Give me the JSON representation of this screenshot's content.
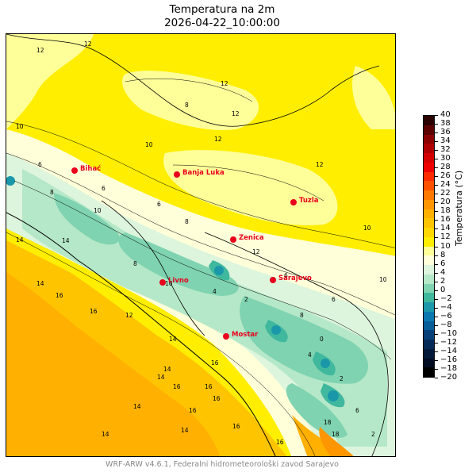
{
  "title": {
    "line1": "Temperatura na 2m",
    "line2": "2026-04-22_10:00:00"
  },
  "colorbar": {
    "label": "Temperatura (°C)",
    "ticks": [
      "40",
      "38",
      "36",
      "34",
      "32",
      "30",
      "28",
      "26",
      "24",
      "22",
      "20",
      "18",
      "16",
      "14",
      "12",
      "10",
      "8",
      "6",
      "4",
      "2",
      "0",
      "−2",
      "−4",
      "−6",
      "−8",
      "−10",
      "−12",
      "−14",
      "−16",
      "−18",
      "−20"
    ],
    "colors": [
      "#2a0000",
      "#5c0000",
      "#8b0000",
      "#b00000",
      "#d40000",
      "#ee0000",
      "#ff2a00",
      "#ff5000",
      "#ff7800",
      "#ff9600",
      "#ffb000",
      "#ffc400",
      "#ffd800",
      "#ffee00",
      "#ffff99",
      "#ffffd9",
      "#ddf5dd",
      "#b5e8c8",
      "#7fd3b0",
      "#40b89e",
      "#1a98aa",
      "#0a78b0",
      "#085e98",
      "#073f78",
      "#062a58",
      "#041a3a",
      "#020c22",
      "#000000"
    ]
  },
  "cities": [
    {
      "name": "Bihać"
    },
    {
      "name": "Banja Luka"
    },
    {
      "name": "Tuzla"
    },
    {
      "name": "Zenica"
    },
    {
      "name": "Sarajevo"
    },
    {
      "name": "Livno"
    },
    {
      "name": "Mostar"
    }
  ],
  "contour_labels": [
    "12",
    "12",
    "12",
    "10",
    "12",
    "8",
    "12",
    "10",
    "6",
    "6",
    "8",
    "10",
    "6",
    "8",
    "12",
    "10",
    "12",
    "14",
    "8",
    "10",
    "12",
    "14",
    "4",
    "6",
    "2",
    "10",
    "6",
    "8",
    "4",
    "2",
    "0",
    "6",
    "2",
    "14",
    "16",
    "14",
    "16",
    "14",
    "16",
    "14",
    "16",
    "16",
    "18",
    "14",
    "16",
    "14",
    "16",
    "14",
    "16",
    "16",
    "18"
  ],
  "footer": "WRF-ARW v4.6.1, Federalni hidrometeorološki zavod Sarajevo"
}
